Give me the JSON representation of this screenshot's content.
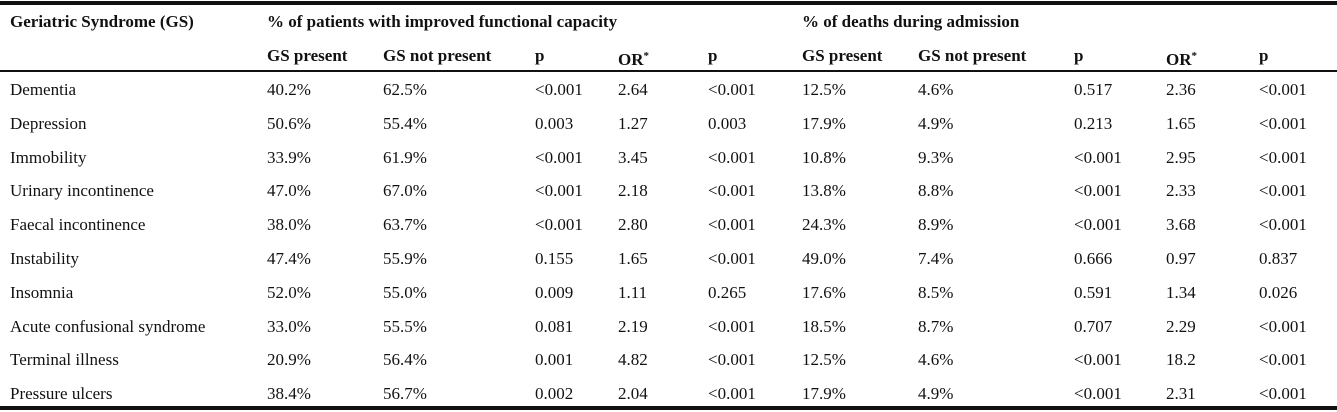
{
  "table": {
    "group_headers": {
      "gs": "Geriatric Syndrome (GS)",
      "functional": "% of patients with improved functional capacity",
      "deaths": "% of deaths during admission"
    },
    "sub_headers": {
      "gs_present_1": "GS present",
      "gs_not_present_1": "GS not present",
      "p_1": "p",
      "or_1": "OR",
      "p_2": "p",
      "gs_present_2": "GS present",
      "gs_not_present_2": "GS not present",
      "p_3": "p",
      "or_2": "OR",
      "p_4": "p",
      "or_mark": "*"
    },
    "rows": [
      {
        "name": "Dementia",
        "c1": "40.2%",
        "c2": "62.5%",
        "c3": "<0.001",
        "c4": "2.64",
        "c5": "<0.001",
        "c6": "12.5%",
        "c7": "4.6%",
        "c8": "0.517",
        "c9": "2.36",
        "c10": "<0.001"
      },
      {
        "name": "Depression",
        "c1": "50.6%",
        "c2": "55.4%",
        "c3": "0.003",
        "c4": "1.27",
        "c5": "0.003",
        "c6": "17.9%",
        "c7": "4.9%",
        "c8": "0.213",
        "c9": "1.65",
        "c10": "<0.001"
      },
      {
        "name": "Immobility",
        "c1": "33.9%",
        "c2": "61.9%",
        "c3": "<0.001",
        "c4": "3.45",
        "c5": "<0.001",
        "c6": "10.8%",
        "c7": "9.3%",
        "c8": "<0.001",
        "c9": "2.95",
        "c10": "<0.001"
      },
      {
        "name": "Urinary incontinence",
        "c1": "47.0%",
        "c2": "67.0%",
        "c3": "<0.001",
        "c4": "2.18",
        "c5": "<0.001",
        "c6": "13.8%",
        "c7": "8.8%",
        "c8": "<0.001",
        "c9": "2.33",
        "c10": "<0.001"
      },
      {
        "name": "Faecal incontinence",
        "c1": "38.0%",
        "c2": "63.7%",
        "c3": "<0.001",
        "c4": "2.80",
        "c5": "<0.001",
        "c6": "24.3%",
        "c7": "8.9%",
        "c8": "<0.001",
        "c9": "3.68",
        "c10": "<0.001"
      },
      {
        "name": "Instability",
        "c1": "47.4%",
        "c2": "55.9%",
        "c3": "0.155",
        "c4": "1.65",
        "c5": "<0.001",
        "c6": "49.0%",
        "c7": "7.4%",
        "c8": "0.666",
        "c9": "0.97",
        "c10": "0.837"
      },
      {
        "name": "Insomnia",
        "c1": "52.0%",
        "c2": "55.0%",
        "c3": "0.009",
        "c4": "1.11",
        "c5": "0.265",
        "c6": "17.6%",
        "c7": "8.5%",
        "c8": "0.591",
        "c9": "1.34",
        "c10": "0.026"
      },
      {
        "name": "Acute confusional syndrome",
        "c1": "33.0%",
        "c2": "55.5%",
        "c3": "0.081",
        "c4": "2.19",
        "c5": "<0.001",
        "c6": "18.5%",
        "c7": "8.7%",
        "c8": "0.707",
        "c9": "2.29",
        "c10": "<0.001"
      },
      {
        "name": "Terminal illness",
        "c1": "20.9%",
        "c2": "56.4%",
        "c3": "0.001",
        "c4": "4.82",
        "c5": "<0.001",
        "c6": "12.5%",
        "c7": "4.6%",
        "c8": "<0.001",
        "c9": "18.2",
        "c10": "<0.001"
      },
      {
        "name": "Pressure ulcers",
        "c1": "38.4%",
        "c2": "56.7%",
        "c3": "0.002",
        "c4": "2.04",
        "c5": "<0.001",
        "c6": "17.9%",
        "c7": "4.9%",
        "c8": "<0.001",
        "c9": "2.31",
        "c10": "<0.001"
      }
    ]
  }
}
